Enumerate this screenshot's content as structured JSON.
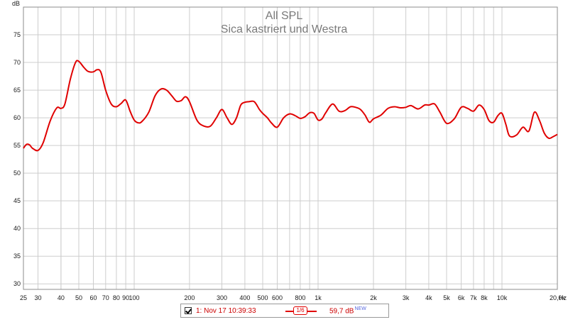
{
  "chart_data": {
    "type": "line",
    "title": "All SPL",
    "subtitle": "Sica kastriert und Westra",
    "xscale": "log",
    "xlim": [
      25,
      20000
    ],
    "ylim": [
      29,
      80
    ],
    "ylabel": "dB",
    "xunit": "Hz",
    "grid": true,
    "y_ticks": [
      30,
      35,
      40,
      45,
      50,
      55,
      60,
      65,
      70,
      75
    ],
    "x_ticks": [
      {
        "v": 25,
        "l": "25"
      },
      {
        "v": 30,
        "l": "30"
      },
      {
        "v": 40,
        "l": "40"
      },
      {
        "v": 50,
        "l": "50"
      },
      {
        "v": 60,
        "l": "60"
      },
      {
        "v": 70,
        "l": "70"
      },
      {
        "v": 80,
        "l": "80"
      },
      {
        "v": 90,
        "l": "90"
      },
      {
        "v": 100,
        "l": "100"
      },
      {
        "v": 200,
        "l": "200"
      },
      {
        "v": 300,
        "l": "300"
      },
      {
        "v": 400,
        "l": "400"
      },
      {
        "v": 500,
        "l": "500"
      },
      {
        "v": 600,
        "l": "600"
      },
      {
        "v": 800,
        "l": "800"
      },
      {
        "v": 1000,
        "l": "1k"
      },
      {
        "v": 2000,
        "l": "2k"
      },
      {
        "v": 3000,
        "l": "3k"
      },
      {
        "v": 4000,
        "l": "4k"
      },
      {
        "v": 5000,
        "l": "5k"
      },
      {
        "v": 6000,
        "l": "6k"
      },
      {
        "v": 7000,
        "l": "7k"
      },
      {
        "v": 8000,
        "l": "8k"
      },
      {
        "v": 10000,
        "l": "10k"
      },
      {
        "v": 20000,
        "l": "20,0k"
      }
    ],
    "series": [
      {
        "color": "#e00000",
        "x": [
          25,
          26,
          27,
          28,
          30,
          32,
          35,
          38,
          40,
          42,
          45,
          48,
          50,
          53,
          56,
          60,
          63,
          66,
          70,
          75,
          80,
          85,
          90,
          95,
          100,
          105,
          110,
          120,
          130,
          140,
          150,
          160,
          170,
          180,
          190,
          200,
          220,
          240,
          260,
          280,
          300,
          320,
          340,
          360,
          380,
          400,
          420,
          450,
          480,
          500,
          530,
          560,
          600,
          650,
          700,
          750,
          800,
          850,
          900,
          950,
          1000,
          1050,
          1100,
          1200,
          1300,
          1400,
          1500,
          1600,
          1700,
          1800,
          1900,
          2000,
          2200,
          2400,
          2600,
          2800,
          3000,
          3200,
          3500,
          3800,
          4000,
          4300,
          4600,
          5000,
          5500,
          6000,
          6500,
          7000,
          7500,
          8000,
          8500,
          9000,
          9500,
          10000,
          10500,
          11000,
          12000,
          13000,
          14000,
          15000,
          16000,
          17000,
          18000,
          19000,
          20000
        ],
        "y": [
          54.5,
          55.2,
          55.1,
          54.5,
          54.1,
          55.5,
          59.5,
          61.8,
          61.7,
          62.5,
          67.0,
          70.0,
          70.2,
          69.2,
          68.4,
          68.3,
          68.7,
          68.2,
          65.0,
          62.5,
          62.0,
          62.6,
          63.2,
          61.2,
          59.6,
          59.1,
          59.3,
          61.0,
          64.0,
          65.2,
          65.0,
          64.0,
          63.0,
          63.1,
          63.8,
          62.9,
          59.5,
          58.5,
          58.5,
          60.0,
          61.5,
          60.0,
          58.8,
          60.0,
          62.3,
          62.8,
          62.9,
          62.9,
          61.5,
          60.8,
          60.0,
          59.0,
          58.3,
          60.0,
          60.7,
          60.4,
          59.9,
          60.2,
          60.9,
          60.8,
          59.6,
          59.8,
          60.9,
          62.5,
          61.2,
          61.3,
          62.0,
          61.9,
          61.5,
          60.5,
          59.2,
          59.8,
          60.5,
          61.7,
          62.0,
          61.8,
          61.9,
          62.2,
          61.6,
          62.3,
          62.3,
          62.5,
          61.0,
          59.0,
          59.8,
          61.9,
          61.7,
          61.2,
          62.3,
          61.5,
          59.5,
          59.2,
          60.4,
          60.8,
          58.8,
          56.7,
          56.9,
          58.3,
          57.6,
          61.0,
          59.5,
          57.2,
          56.3,
          56.6,
          57.0
        ]
      }
    ]
  },
  "legend": {
    "entry_label": "1: Nov 17 10:39:33",
    "smoothing": "1/6",
    "value": "59,7 dB",
    "badge": "NEW"
  }
}
